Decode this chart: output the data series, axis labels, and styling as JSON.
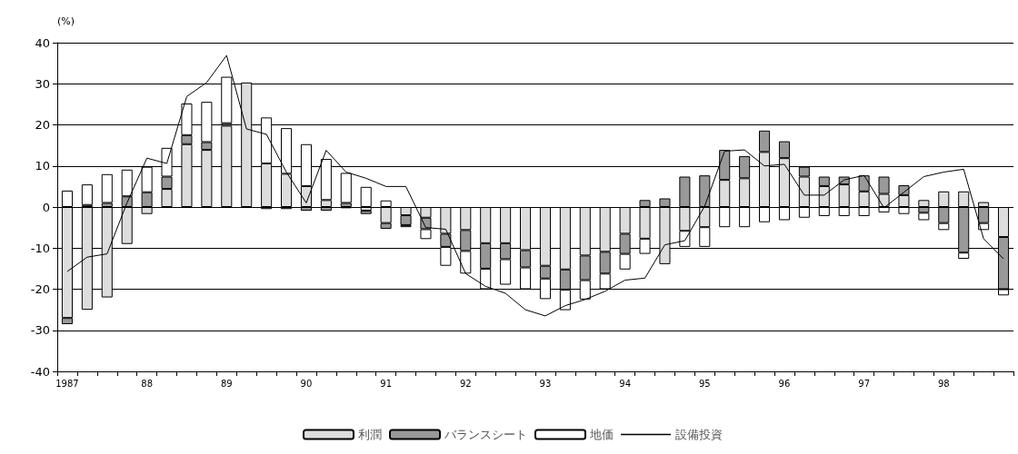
{
  "chart_data": {
    "type": "bar",
    "stacked": true,
    "ylabel": "(%)",
    "categories": [
      "1987",
      null,
      null,
      null,
      "88",
      null,
      null,
      null,
      "89",
      null,
      null,
      null,
      "90",
      null,
      null,
      null,
      "91",
      null,
      null,
      null,
      "92",
      null,
      null,
      null,
      "93",
      null,
      null,
      null,
      "94",
      null,
      null,
      null,
      "95",
      null,
      null,
      null,
      "96",
      null,
      null,
      null,
      "97",
      null,
      null,
      null,
      "98",
      null,
      null,
      null
    ],
    "series": [
      {
        "name": "利潤",
        "color": "#dddddd",
        "values": [
          -27,
          -25,
          -22,
          -9,
          -1.7,
          4.4,
          15.3,
          13.9,
          19.8,
          30.3,
          10.6,
          8.1,
          5.1,
          1.7,
          -0.3,
          -0.9,
          -3.9,
          -2,
          -2.6,
          -6.5,
          -5.6,
          -8.8,
          -8.8,
          -10.5,
          -14.3,
          -15.2,
          -11.8,
          -10.9,
          -6.5,
          -7.7,
          -13.9,
          -5.8,
          -4.9,
          6.6,
          7,
          13.4,
          11.9,
          7.4,
          5.1,
          5.5,
          3.8,
          3.2,
          2.9,
          1.7,
          3.8,
          3.8,
          1.2,
          -7.3
        ]
      },
      {
        "name": "バランスシート",
        "color": "#999999",
        "values": [
          -1.5,
          0.5,
          1,
          2.6,
          3.6,
          3,
          2.2,
          1.9,
          0.6,
          0,
          -0.5,
          -0.5,
          -0.9,
          -0.9,
          1,
          -0.8,
          -1.4,
          -2.4,
          -2.8,
          -3.2,
          -5.1,
          -6.2,
          -3.9,
          -4.2,
          -3.1,
          -4.9,
          -6,
          -5.3,
          -4.9,
          1.7,
          2.1,
          7.4,
          7.7,
          7.3,
          5.4,
          5.2,
          4.1,
          2.4,
          2.3,
          1.9,
          3.9,
          4.2,
          2.4,
          -1.4,
          -3.9,
          -11.1,
          -3.9,
          -12.7
        ]
      },
      {
        "name": "地価",
        "color": "#ffffff",
        "values": [
          4,
          5,
          7,
          6.5,
          6.2,
          7,
          7.7,
          9.8,
          11.3,
          0,
          11.2,
          11.1,
          10.2,
          10,
          7.3,
          4.9,
          1.6,
          -0.5,
          -2.4,
          -4.6,
          -5.5,
          -5,
          -6.2,
          -5.3,
          -5,
          -5,
          -4.7,
          -3.8,
          -3.8,
          -3.7,
          0,
          -3.9,
          -4.8,
          -4.9,
          -4.9,
          -3.7,
          -3.2,
          -2.6,
          -2.2,
          -2.2,
          -2.2,
          -1.3,
          -1.7,
          -1.8,
          -1.7,
          -1.5,
          -1.7,
          -1.5
        ]
      },
      {
        "name": "設備投資",
        "type": "line",
        "color": "#000000",
        "values": [
          -15.7,
          -12.2,
          -11.4,
          1,
          11.9,
          10.6,
          26.9,
          30.3,
          36.9,
          19,
          17.7,
          8.5,
          1,
          13.8,
          8.5,
          7,
          5,
          5,
          -5,
          -5.4,
          -16.2,
          -19.3,
          -21,
          -25,
          -26.5,
          -24,
          -22.5,
          -20.5,
          -17.8,
          -17.3,
          -9.2,
          -8.2,
          0.2,
          13.6,
          13.9,
          10,
          10.4,
          2.9,
          2.9,
          6.6,
          7.7,
          -0.2,
          3.6,
          7.4,
          8.5,
          9.2,
          -7.7,
          -12.6
        ]
      }
    ],
    "ylim": [
      -40,
      40
    ],
    "yticks": [
      -40,
      -30,
      -20,
      -10,
      0,
      10,
      20,
      30,
      40
    ],
    "grid": "y",
    "legend": "bottom",
    "marker": "none",
    "line_style": "solid"
  }
}
